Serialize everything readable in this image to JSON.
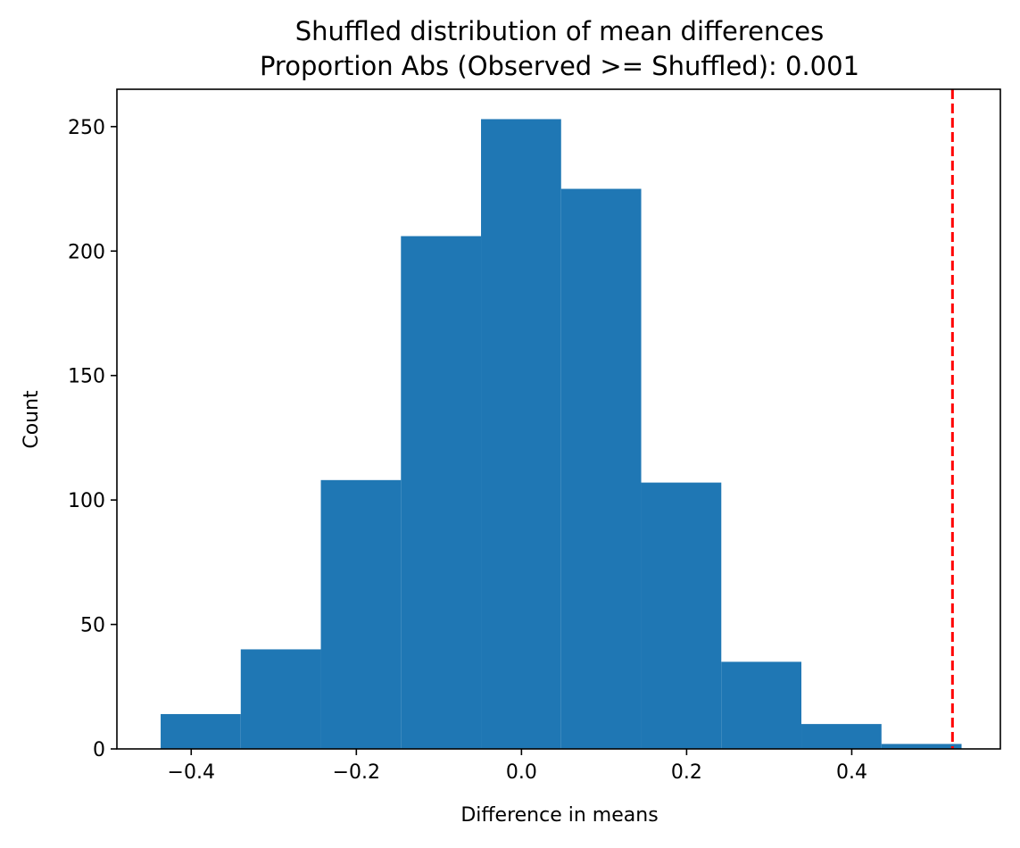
{
  "figure": {
    "title_line1": "Shuffled distribution of mean differences",
    "title_line2": "Proportion Abs (Observed >= Shuffled): 0.001"
  },
  "chart_data": {
    "type": "bar",
    "subtype": "histogram",
    "title": "Shuffled distribution of mean differences\nProportion Abs (Observed >= Shuffled): 0.001",
    "xlabel": "Difference in means",
    "ylabel": "Count",
    "xlim": [
      -0.49,
      0.58
    ],
    "ylim": [
      0,
      265
    ],
    "xticks": [
      -0.4,
      -0.2,
      0.0,
      0.2,
      0.4
    ],
    "xtick_labels": [
      "−0.4",
      "−0.2",
      "0.0",
      "0.2",
      "0.4"
    ],
    "yticks": [
      0,
      50,
      100,
      150,
      200,
      250
    ],
    "ytick_labels": [
      "0",
      "50",
      "100",
      "150",
      "200",
      "250"
    ],
    "bin_edges": [
      -0.437,
      -0.34,
      -0.243,
      -0.146,
      -0.049,
      0.048,
      0.145,
      0.242,
      0.339,
      0.436,
      0.533
    ],
    "counts": [
      14,
      40,
      108,
      206,
      253,
      225,
      107,
      35,
      10,
      2
    ],
    "bar_color": "#1f77b4",
    "reference_line": {
      "x": 0.522,
      "color": "#ff0000",
      "style": "dashed"
    },
    "grid": false,
    "legend": "none"
  }
}
